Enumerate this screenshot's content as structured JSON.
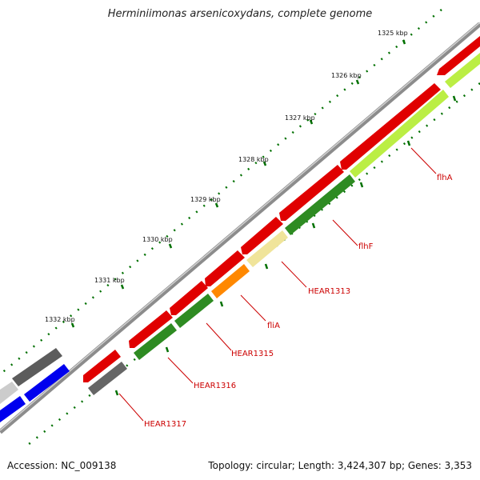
{
  "title": "Herminiimonas arsenicoxydans, complete genome",
  "accession": "Accession: NC_009138",
  "topology_line": {
    "topology": "Topology: circular",
    "length": "Length: 3,424,307 bp",
    "genes": "Genes: 3,353"
  },
  "scale_labels": [
    "1325 kbp",
    "1326 kbp",
    "1327 kbp",
    "1328 kbp",
    "1329 kbp",
    "1330 kbp",
    "1331 kbp",
    "1332 kbp"
  ],
  "gene_labels": [
    "flhA",
    "flhF",
    "HEAR1313",
    "fliA",
    "HEAR1315",
    "HEAR1316",
    "HEAR1317"
  ],
  "colors": {
    "backbone": "#8c8c8c",
    "cds_forward": "#e00000",
    "label": "#cc0000",
    "scale": "#007000",
    "green": "#2e8b22",
    "lightgreen": "#bbee44",
    "yellow": "#f0e49a",
    "orange": "#ff8800",
    "grey": "#666666",
    "lightgrey": "#cccccc",
    "blue": "#0000ee"
  }
}
